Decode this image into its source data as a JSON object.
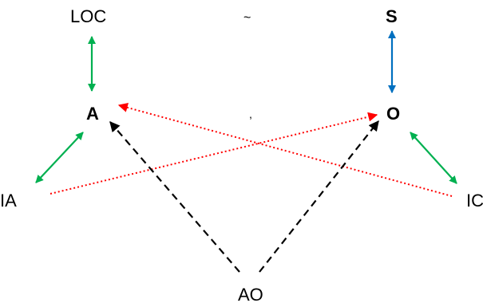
{
  "nodes": {
    "loc": "LOC",
    "s": "S",
    "a": "A",
    "o": "O",
    "ia": "IA",
    "ic": "IC",
    "ao": "AO"
  },
  "marks": {
    "tilde": "~",
    "comma": ","
  },
  "colors": {
    "green": "#00b050",
    "blue": "#0070c0",
    "red": "#ff0000",
    "black": "#000000"
  },
  "edges": [
    {
      "from": "LOC",
      "to": "A",
      "color": "green",
      "style": "solid",
      "direction": "both"
    },
    {
      "from": "S",
      "to": "O",
      "color": "blue",
      "style": "solid",
      "direction": "both"
    },
    {
      "from": "IA",
      "to": "A",
      "color": "green",
      "style": "solid",
      "direction": "both"
    },
    {
      "from": "IC",
      "to": "O",
      "color": "green",
      "style": "solid",
      "direction": "both"
    },
    {
      "from": "IA",
      "to": "O",
      "color": "red",
      "style": "dotted",
      "direction": "forward"
    },
    {
      "from": "IC",
      "to": "A",
      "color": "red",
      "style": "dotted",
      "direction": "forward"
    },
    {
      "from": "AO",
      "to": "A",
      "color": "black",
      "style": "dashed",
      "direction": "forward"
    },
    {
      "from": "AO",
      "to": "O",
      "color": "black",
      "style": "dashed",
      "direction": "forward"
    }
  ]
}
